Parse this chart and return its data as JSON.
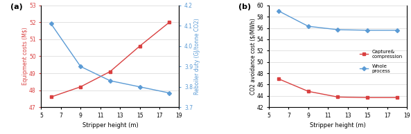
{
  "x": [
    6,
    9,
    12,
    15,
    18
  ],
  "x_ticks": [
    5,
    7,
    9,
    11,
    13,
    15,
    17,
    19
  ],
  "subplot_a": {
    "label": "(a)",
    "red_label": "Equipment costs (M$)",
    "blue_label": "Reboiler duty (GJ/tonne CO2)",
    "red_y": [
      47.6,
      48.2,
      49.1,
      50.6,
      52.0
    ],
    "blue_y": [
      4.11,
      3.9,
      3.83,
      3.8,
      3.77
    ],
    "red_color": "#d94040",
    "blue_color": "#5b9bd5",
    "ylim_left": [
      47,
      53
    ],
    "ylim_right": [
      3.7,
      4.2
    ],
    "yticks_left": [
      47,
      48,
      49,
      50,
      51,
      52,
      53
    ],
    "yticks_right": [
      3.7,
      3.8,
      3.9,
      4.0,
      4.1,
      4.2
    ],
    "xlabel": "Stripper height (m)"
  },
  "subplot_b": {
    "label": "(b)",
    "red_label": "Capture&\ncompression",
    "blue_label": "Whole\nprocess",
    "red_y": [
      47.0,
      44.8,
      43.8,
      43.7,
      43.7
    ],
    "blue_y": [
      59.0,
      56.3,
      55.7,
      55.6,
      55.6
    ],
    "red_color": "#d94040",
    "blue_color": "#5b9bd5",
    "ylim": [
      42,
      60
    ],
    "yticks": [
      42,
      44,
      46,
      48,
      50,
      52,
      54,
      56,
      58,
      60
    ],
    "ylabel": "CO2 avoidance cost ($/MWh)",
    "xlabel": "Stripper height (m)"
  }
}
